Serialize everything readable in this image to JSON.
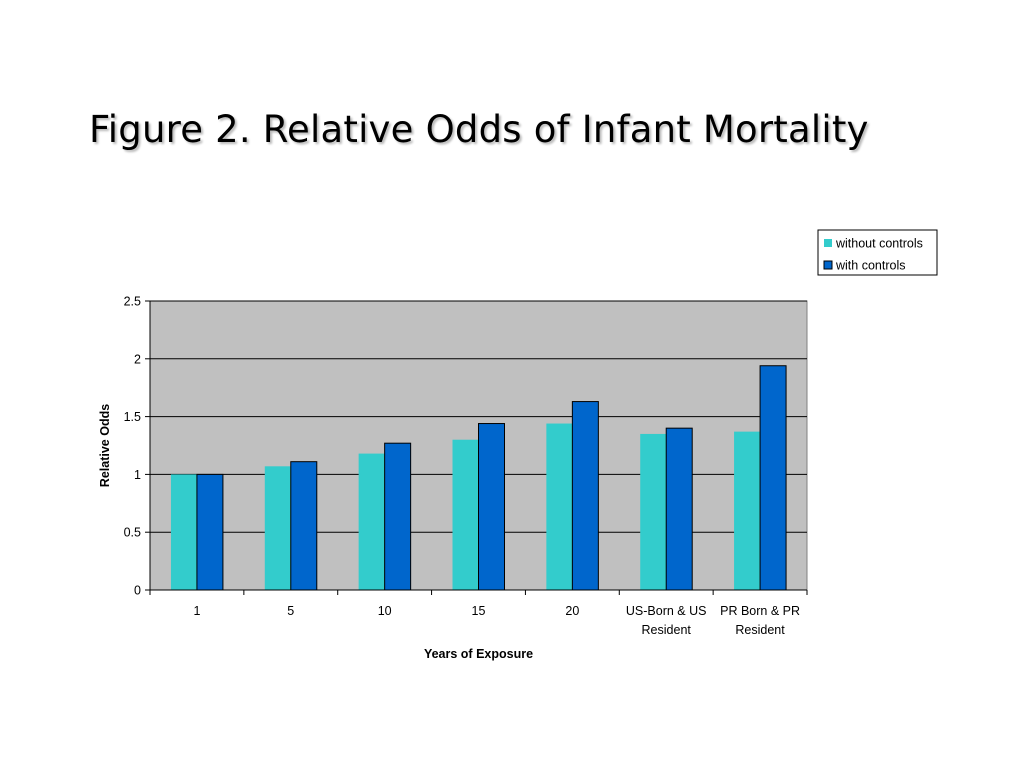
{
  "title": "Figure 2. Relative Odds of Infant Mortality",
  "chart_data": {
    "type": "bar",
    "title": "",
    "xlabel": "Years of Exposure",
    "ylabel": "Relative Odds",
    "ylim": [
      0,
      2.5
    ],
    "yticks": [
      "0",
      "0.5",
      "1",
      "1.5",
      "2",
      "2.5"
    ],
    "ytick_values": [
      0,
      0.5,
      1,
      1.5,
      2,
      2.5
    ],
    "grid": true,
    "legend_position": "top-right",
    "plot_background": "#C0C0C0",
    "categories": [
      [
        "1"
      ],
      [
        "5"
      ],
      [
        "10"
      ],
      [
        "15"
      ],
      [
        "20"
      ],
      [
        "US-Born & US",
        "Resident"
      ],
      [
        "PR Born & PR",
        "Resident"
      ]
    ],
    "series": [
      {
        "name": "without controls",
        "color": "#33CCCC",
        "values": [
          1.0,
          1.07,
          1.18,
          1.3,
          1.44,
          1.35,
          1.37
        ]
      },
      {
        "name": "with controls",
        "color": "#0066CC",
        "values": [
          1.0,
          1.11,
          1.27,
          1.44,
          1.63,
          1.4,
          1.94
        ]
      }
    ]
  }
}
